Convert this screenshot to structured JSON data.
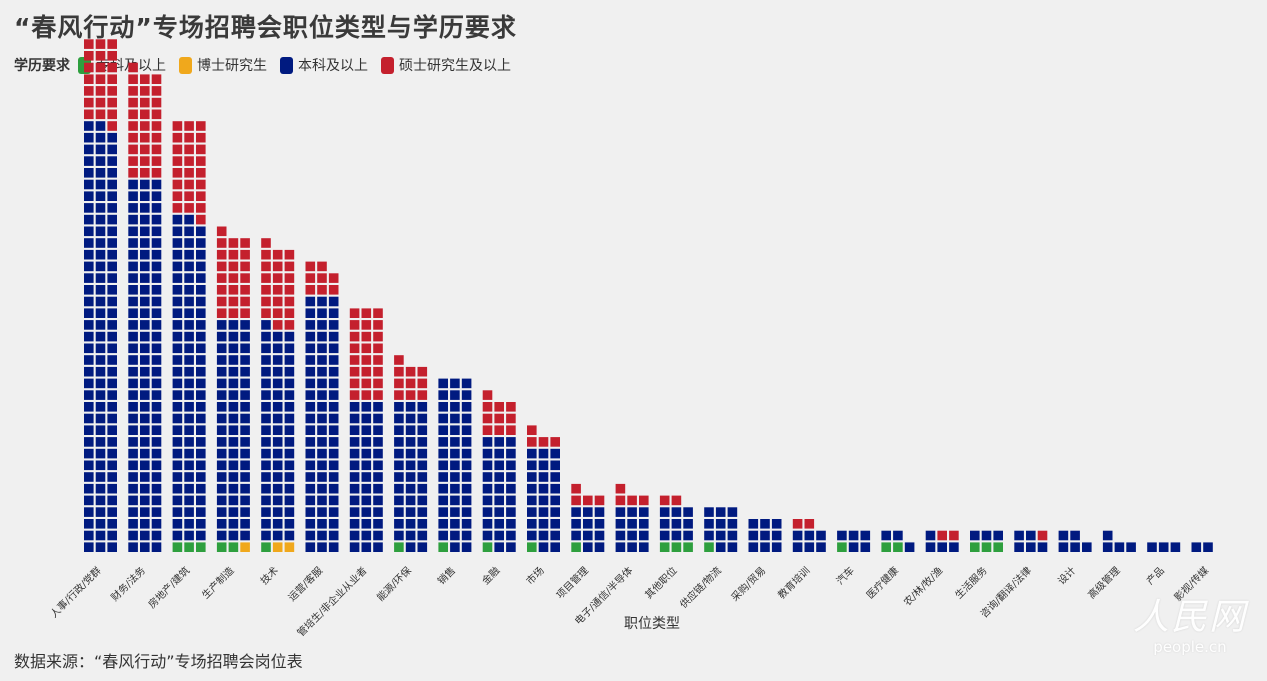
{
  "title": "“春风行动”专场招聘会职位类型与学历要求",
  "legend": {
    "title": "学历要求",
    "items": [
      {
        "label": "专科及以上",
        "color": "#2e9f3e"
      },
      {
        "label": "博士研究生",
        "color": "#f0a81c"
      },
      {
        "label": "本科及以上",
        "color": "#001a80"
      },
      {
        "label": "硕士研究生及以上",
        "color": "#c4202d"
      }
    ]
  },
  "source": "数据来源：“春风行动”专场招聘会岗位表",
  "logo": {
    "mark": "人民网",
    "url": "people.cn"
  },
  "chart_data": {
    "type": "waffle",
    "xlabel": "职位类型",
    "ylabel": "",
    "series": [
      {
        "name": "专科及以上",
        "color": "#2e9f3e"
      },
      {
        "name": "博士研究生",
        "color": "#f0a81c"
      },
      {
        "name": "本科及以上",
        "color": "#001a80"
      },
      {
        "name": "硕士研究生及以上",
        "color": "#c4202d"
      }
    ],
    "categories": [
      {
        "name": "人事/行政/党群",
        "counts": [
          0,
          0,
          110,
          22
        ]
      },
      {
        "name": "财务/法务",
        "counts": [
          0,
          0,
          96,
          28
        ]
      },
      {
        "name": "房地产/建筑",
        "counts": [
          3,
          0,
          83,
          25
        ]
      },
      {
        "name": "生产制造",
        "counts": [
          2,
          1,
          57,
          22
        ]
      },
      {
        "name": "技术",
        "counts": [
          1,
          2,
          55,
          21
        ]
      },
      {
        "name": "运营/客服",
        "counts": [
          0,
          0,
          66,
          8
        ]
      },
      {
        "name": "管培生/非企业从业者",
        "counts": [
          0,
          0,
          39,
          24
        ]
      },
      {
        "name": "能源/环保",
        "counts": [
          1,
          0,
          38,
          10
        ]
      },
      {
        "name": "销售",
        "counts": [
          1,
          0,
          44,
          0
        ]
      },
      {
        "name": "金融",
        "counts": [
          1,
          0,
          29,
          10
        ]
      },
      {
        "name": "市场",
        "counts": [
          1,
          0,
          26,
          4
        ]
      },
      {
        "name": "项目管理",
        "counts": [
          1,
          0,
          11,
          4
        ]
      },
      {
        "name": "电子/通信/半导体",
        "counts": [
          0,
          0,
          12,
          4
        ]
      },
      {
        "name": "其他职位",
        "counts": [
          3,
          0,
          9,
          2
        ]
      },
      {
        "name": "供应链/物流",
        "counts": [
          1,
          0,
          11,
          0
        ]
      },
      {
        "name": "采购/贸易",
        "counts": [
          0,
          0,
          9,
          0
        ]
      },
      {
        "name": "教育培训",
        "counts": [
          0,
          0,
          6,
          2
        ]
      },
      {
        "name": "汽车",
        "counts": [
          1,
          0,
          5,
          0
        ]
      },
      {
        "name": "医疗健康",
        "counts": [
          2,
          0,
          3,
          0
        ]
      },
      {
        "name": "农/林/牧/渔",
        "counts": [
          0,
          0,
          4,
          2
        ]
      },
      {
        "name": "生活服务",
        "counts": [
          3,
          0,
          3,
          0
        ]
      },
      {
        "name": "咨询/翻译/法律",
        "counts": [
          0,
          0,
          5,
          1
        ]
      },
      {
        "name": "设计",
        "counts": [
          0,
          0,
          5,
          0
        ]
      },
      {
        "name": "高级管理",
        "counts": [
          0,
          0,
          4,
          0
        ]
      },
      {
        "name": "产品",
        "counts": [
          0,
          0,
          3,
          0
        ]
      },
      {
        "name": "影视/传媒",
        "counts": [
          0,
          0,
          2,
          0
        ]
      }
    ]
  }
}
